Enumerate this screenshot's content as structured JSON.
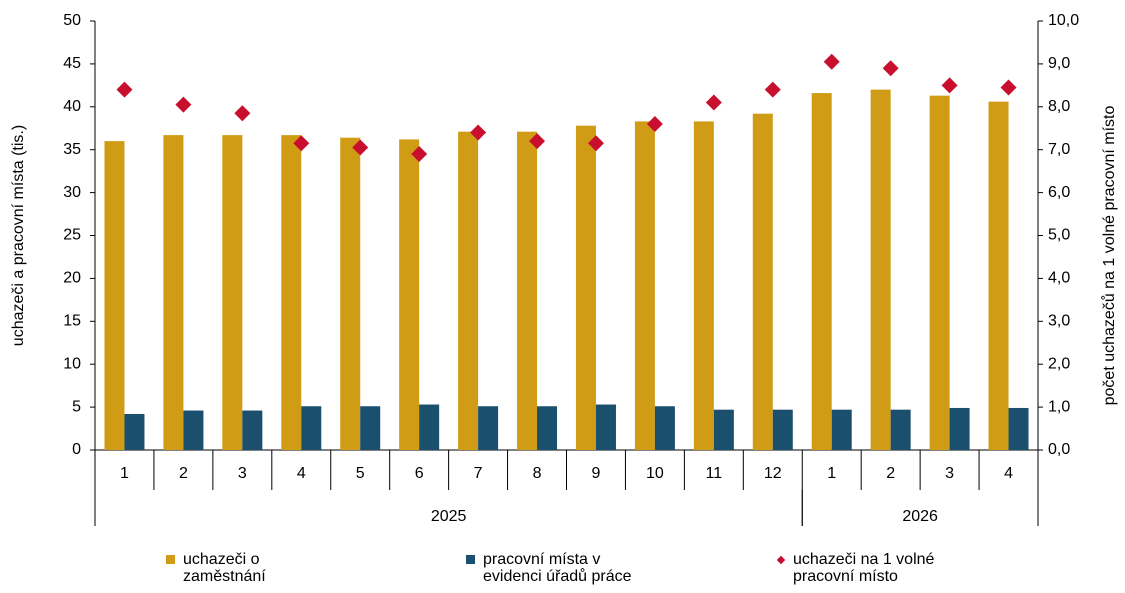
{
  "chart_data": {
    "type": "bar_line",
    "categories": [
      "1",
      "2",
      "3",
      "4",
      "5",
      "6",
      "7",
      "8",
      "9",
      "10",
      "11",
      "12",
      "1",
      "2",
      "3",
      "4"
    ],
    "x_groups": [
      {
        "label": "2025",
        "size": 12
      },
      {
        "label": "2026",
        "size": 4
      }
    ],
    "ylabel": "uchazeči a pracovní místa (tis.)",
    "y2label": "počet uchazečů  na 1  volné pracovní místo",
    "ylim": [
      0,
      50
    ],
    "yticks": [
      0,
      5,
      10,
      15,
      20,
      25,
      30,
      35,
      40,
      45,
      50
    ],
    "y2lim": [
      0,
      10
    ],
    "y2ticks": [
      {
        "value": 0,
        "label": "0,0"
      },
      {
        "value": 1,
        "label": "1,0"
      },
      {
        "value": 2,
        "label": "2,0"
      },
      {
        "value": 3,
        "label": "3,0"
      },
      {
        "value": 4,
        "label": "4,0"
      },
      {
        "value": 5,
        "label": "5,0"
      },
      {
        "value": 6,
        "label": "6,0"
      },
      {
        "value": 7,
        "label": "7,0"
      },
      {
        "value": 8,
        "label": "8,0"
      },
      {
        "value": 9,
        "label": "9,0"
      },
      {
        "value": 10,
        "label": "10,0"
      }
    ],
    "series": [
      {
        "name": "uchazeči o zaměstnání",
        "type": "bar",
        "color": "#d09c16",
        "values": [
          36,
          36.7,
          36.7,
          36.7,
          36.4,
          36.2,
          37.1,
          37.1,
          37.8,
          38.3,
          38.3,
          39.2,
          41.6,
          42,
          41.3,
          40.6
        ]
      },
      {
        "name": "pracovní místa v evidenci úřadů práce",
        "type": "bar",
        "color": "#1b4f6e",
        "values": [
          4.2,
          4.6,
          4.6,
          5.1,
          5.1,
          5.3,
          5.1,
          5.1,
          5.3,
          5.1,
          4.7,
          4.7,
          4.7,
          4.7,
          4.9,
          4.9
        ]
      },
      {
        "name": "uchazeči na 1 volné pracovní místo",
        "type": "scatter",
        "axis": "y2",
        "color": "#c8102e",
        "values": [
          8.4,
          8.05,
          7.85,
          7.15,
          7.05,
          6.9,
          7.4,
          7.2,
          7.15,
          7.6,
          8.1,
          8.4,
          9.05,
          8.9,
          8.5,
          8.45
        ]
      }
    ]
  }
}
